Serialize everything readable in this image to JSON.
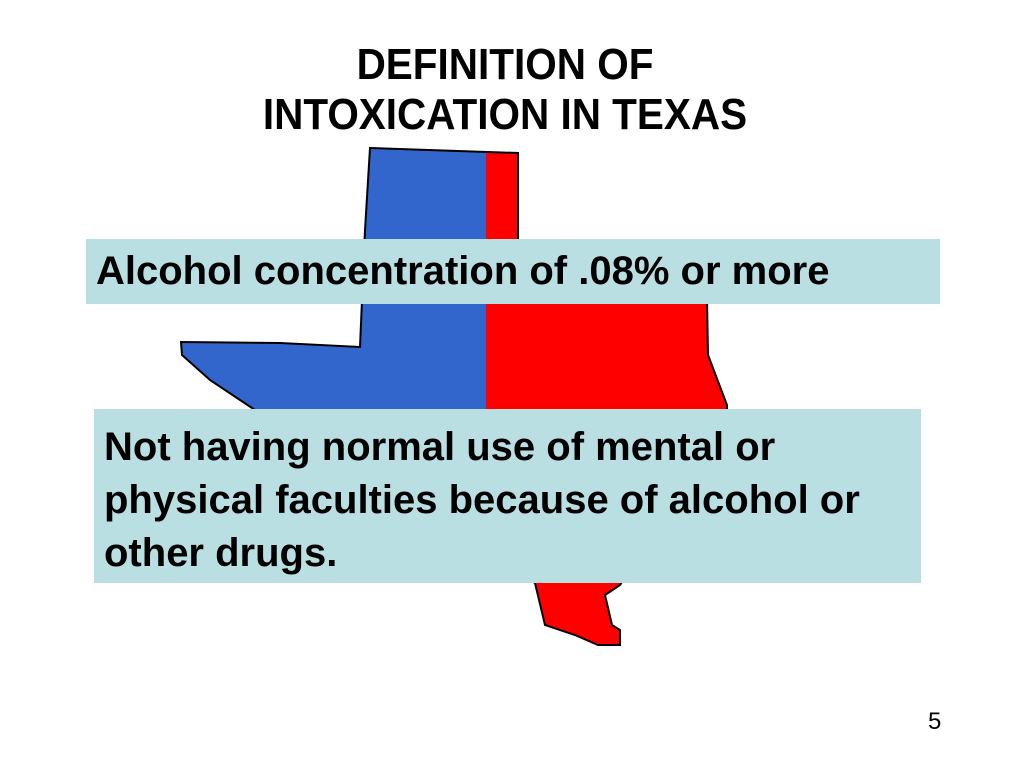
{
  "slide": {
    "title_line1": "DEFINITION OF",
    "title_line2": "INTOXICATION IN TEXAS",
    "definition_1": "Alcohol concentration of .08% or more",
    "definition_2": "Not having normal use of mental or physical faculties because of alcohol or other drugs.",
    "page_number": "5"
  },
  "colors": {
    "west": "#3366cc",
    "east": "#ff0000",
    "box": "#b9dfe3"
  },
  "image": {
    "name": "texas-map-icon"
  }
}
